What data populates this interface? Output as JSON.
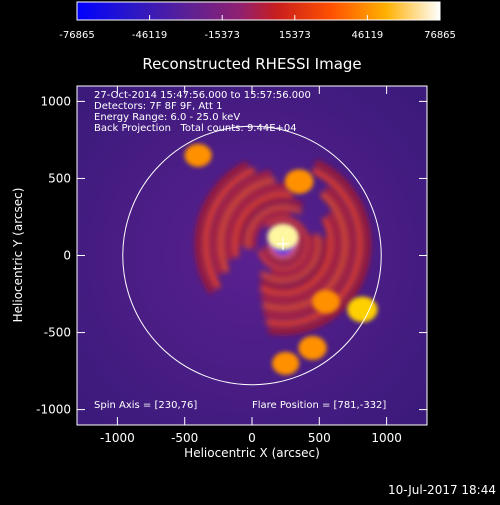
{
  "chart_data": {
    "type": "heatmap",
    "title": "Reconstructed RHESSI Image",
    "xlabel": "Heliocentric X (arcsec)",
    "ylabel": "Heliocentric Y (arcsec)",
    "xlim": [
      -1300,
      1300
    ],
    "ylim": [
      -1100,
      1100
    ],
    "x_ticks": [
      -1000,
      -500,
      0,
      500,
      1000
    ],
    "y_ticks": [
      -1000,
      -500,
      0,
      500,
      1000
    ],
    "x_tick_labels": [
      "-1000",
      "-500",
      "0",
      "500",
      "1000"
    ],
    "y_tick_labels": [
      "-1000",
      "-500",
      "0",
      "500",
      "1000"
    ],
    "colorbar": {
      "min": -76865,
      "max": 76865,
      "tick_values": [
        -76865,
        -46119,
        -15373,
        15373,
        46119,
        76865
      ],
      "tick_labels": [
        "-76865",
        "-46119",
        "-15373",
        "15373",
        "46119",
        "76865"
      ],
      "colors": [
        "#0000ff",
        "#3a1aa0",
        "#7a2080",
        "#b5202a",
        "#ff3a00",
        "#ff8a00",
        "#ffd000",
        "#ffffff"
      ]
    },
    "annotations": [
      "27-Oct-2014 15:47:56.000 to 15:57:56.000",
      "Detectors: 7F 8F 9F, Att 1",
      "Energy Range: 6.0 - 25.0 keV",
      "Back Projection   Total counts: 9.44E+04"
    ],
    "spin_axis": "Spin Axis = [230,76]",
    "flare_position_label": "Flare Position = [781,-332]",
    "spin_axis_value": [
      230,
      76
    ],
    "flare_position": [
      781,
      -332
    ],
    "center_marker": [
      230,
      76
    ],
    "solar_limb": {
      "center": [
        0,
        0
      ],
      "radius": 960
    },
    "hot_spots": [
      {
        "x": 230,
        "y": 120,
        "value": 70000
      },
      {
        "x": 350,
        "y": 480,
        "value": 45000
      },
      {
        "x": 820,
        "y": -350,
        "value": 60000
      },
      {
        "x": 550,
        "y": -300,
        "value": 35000
      },
      {
        "x": 450,
        "y": -600,
        "value": 40000
      },
      {
        "x": 250,
        "y": -700,
        "value": 30000
      },
      {
        "x": -400,
        "y": 650,
        "value": 30000
      }
    ]
  },
  "footer": {
    "timestamp": "10-Jul-2017 18:44"
  }
}
